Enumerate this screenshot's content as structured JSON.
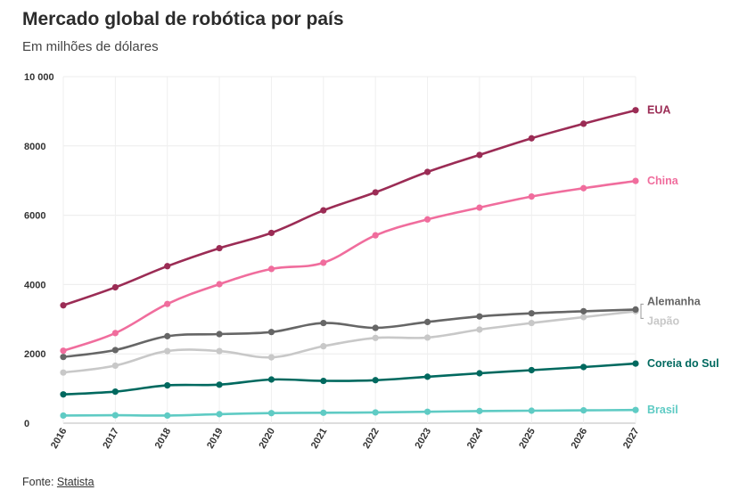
{
  "title": "Mercado global de robótica por país",
  "subtitle": "Em milhões de dólares",
  "source_prefix": "Fonte: ",
  "source_link": "Statista",
  "chart_data": {
    "type": "line",
    "x": [
      "2016",
      "2017",
      "2018",
      "2019",
      "2020",
      "2021",
      "2022",
      "2023",
      "2024",
      "2025",
      "2026",
      "2027"
    ],
    "ylim": [
      0,
      10000
    ],
    "yticks": [
      0,
      2000,
      4000,
      6000,
      8000,
      10000
    ],
    "ytick_labels": [
      "0",
      "2000",
      "4000",
      "6000",
      "8000",
      "10 000"
    ],
    "grid": true,
    "series": [
      {
        "name": "EUA",
        "color": "#9b2c55",
        "values": [
          3400,
          3920,
          4530,
          5050,
          5490,
          6140,
          6660,
          7250,
          7740,
          8220,
          8640,
          9030
        ]
      },
      {
        "name": "China",
        "color": "#f06d9d",
        "values": [
          2090,
          2600,
          3440,
          4010,
          4450,
          4630,
          5420,
          5880,
          6220,
          6540,
          6780,
          6990
        ]
      },
      {
        "name": "Alemanha",
        "color": "#666666",
        "values": [
          1910,
          2110,
          2510,
          2570,
          2630,
          2890,
          2750,
          2920,
          3080,
          3170,
          3230,
          3280
        ]
      },
      {
        "name": "Japão",
        "color": "#c8c8c8",
        "values": [
          1460,
          1660,
          2080,
          2080,
          1900,
          2220,
          2460,
          2470,
          2700,
          2890,
          3060,
          3230
        ]
      },
      {
        "name": "Coreia do Sul",
        "color": "#00695f",
        "values": [
          830,
          910,
          1090,
          1110,
          1260,
          1220,
          1240,
          1340,
          1440,
          1530,
          1620,
          1720
        ]
      },
      {
        "name": "Brasil",
        "color": "#5fcbc4",
        "values": [
          220,
          230,
          220,
          260,
          290,
          300,
          310,
          330,
          350,
          360,
          370,
          380
        ]
      }
    ]
  }
}
